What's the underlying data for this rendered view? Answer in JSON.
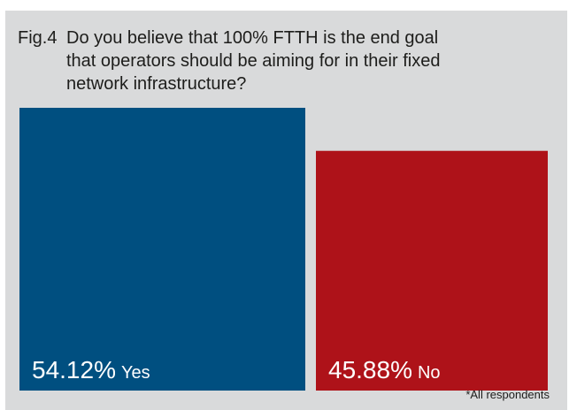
{
  "figure": {
    "label": "Fig.4",
    "question_lines": [
      "Do you believe that 100% FTTH is the end goal",
      "that operators should be aiming for in their fixed",
      "network infrastructure?"
    ],
    "footnote": "*All respondents",
    "background_color": "#d9dadb"
  },
  "chart_data": {
    "type": "bar",
    "title": "Do you believe that 100% FTTH is the end goal that operators should be aiming for in their fixed network infrastructure?",
    "categories": [
      "Yes",
      "No"
    ],
    "values": [
      54.12,
      45.88
    ],
    "value_labels": [
      "54.12%",
      "45.88%"
    ],
    "unit": "%",
    "colors": [
      "#004f80",
      "#ae1219"
    ],
    "label_color": "#ffffff",
    "grid": false,
    "legend": "none"
  }
}
